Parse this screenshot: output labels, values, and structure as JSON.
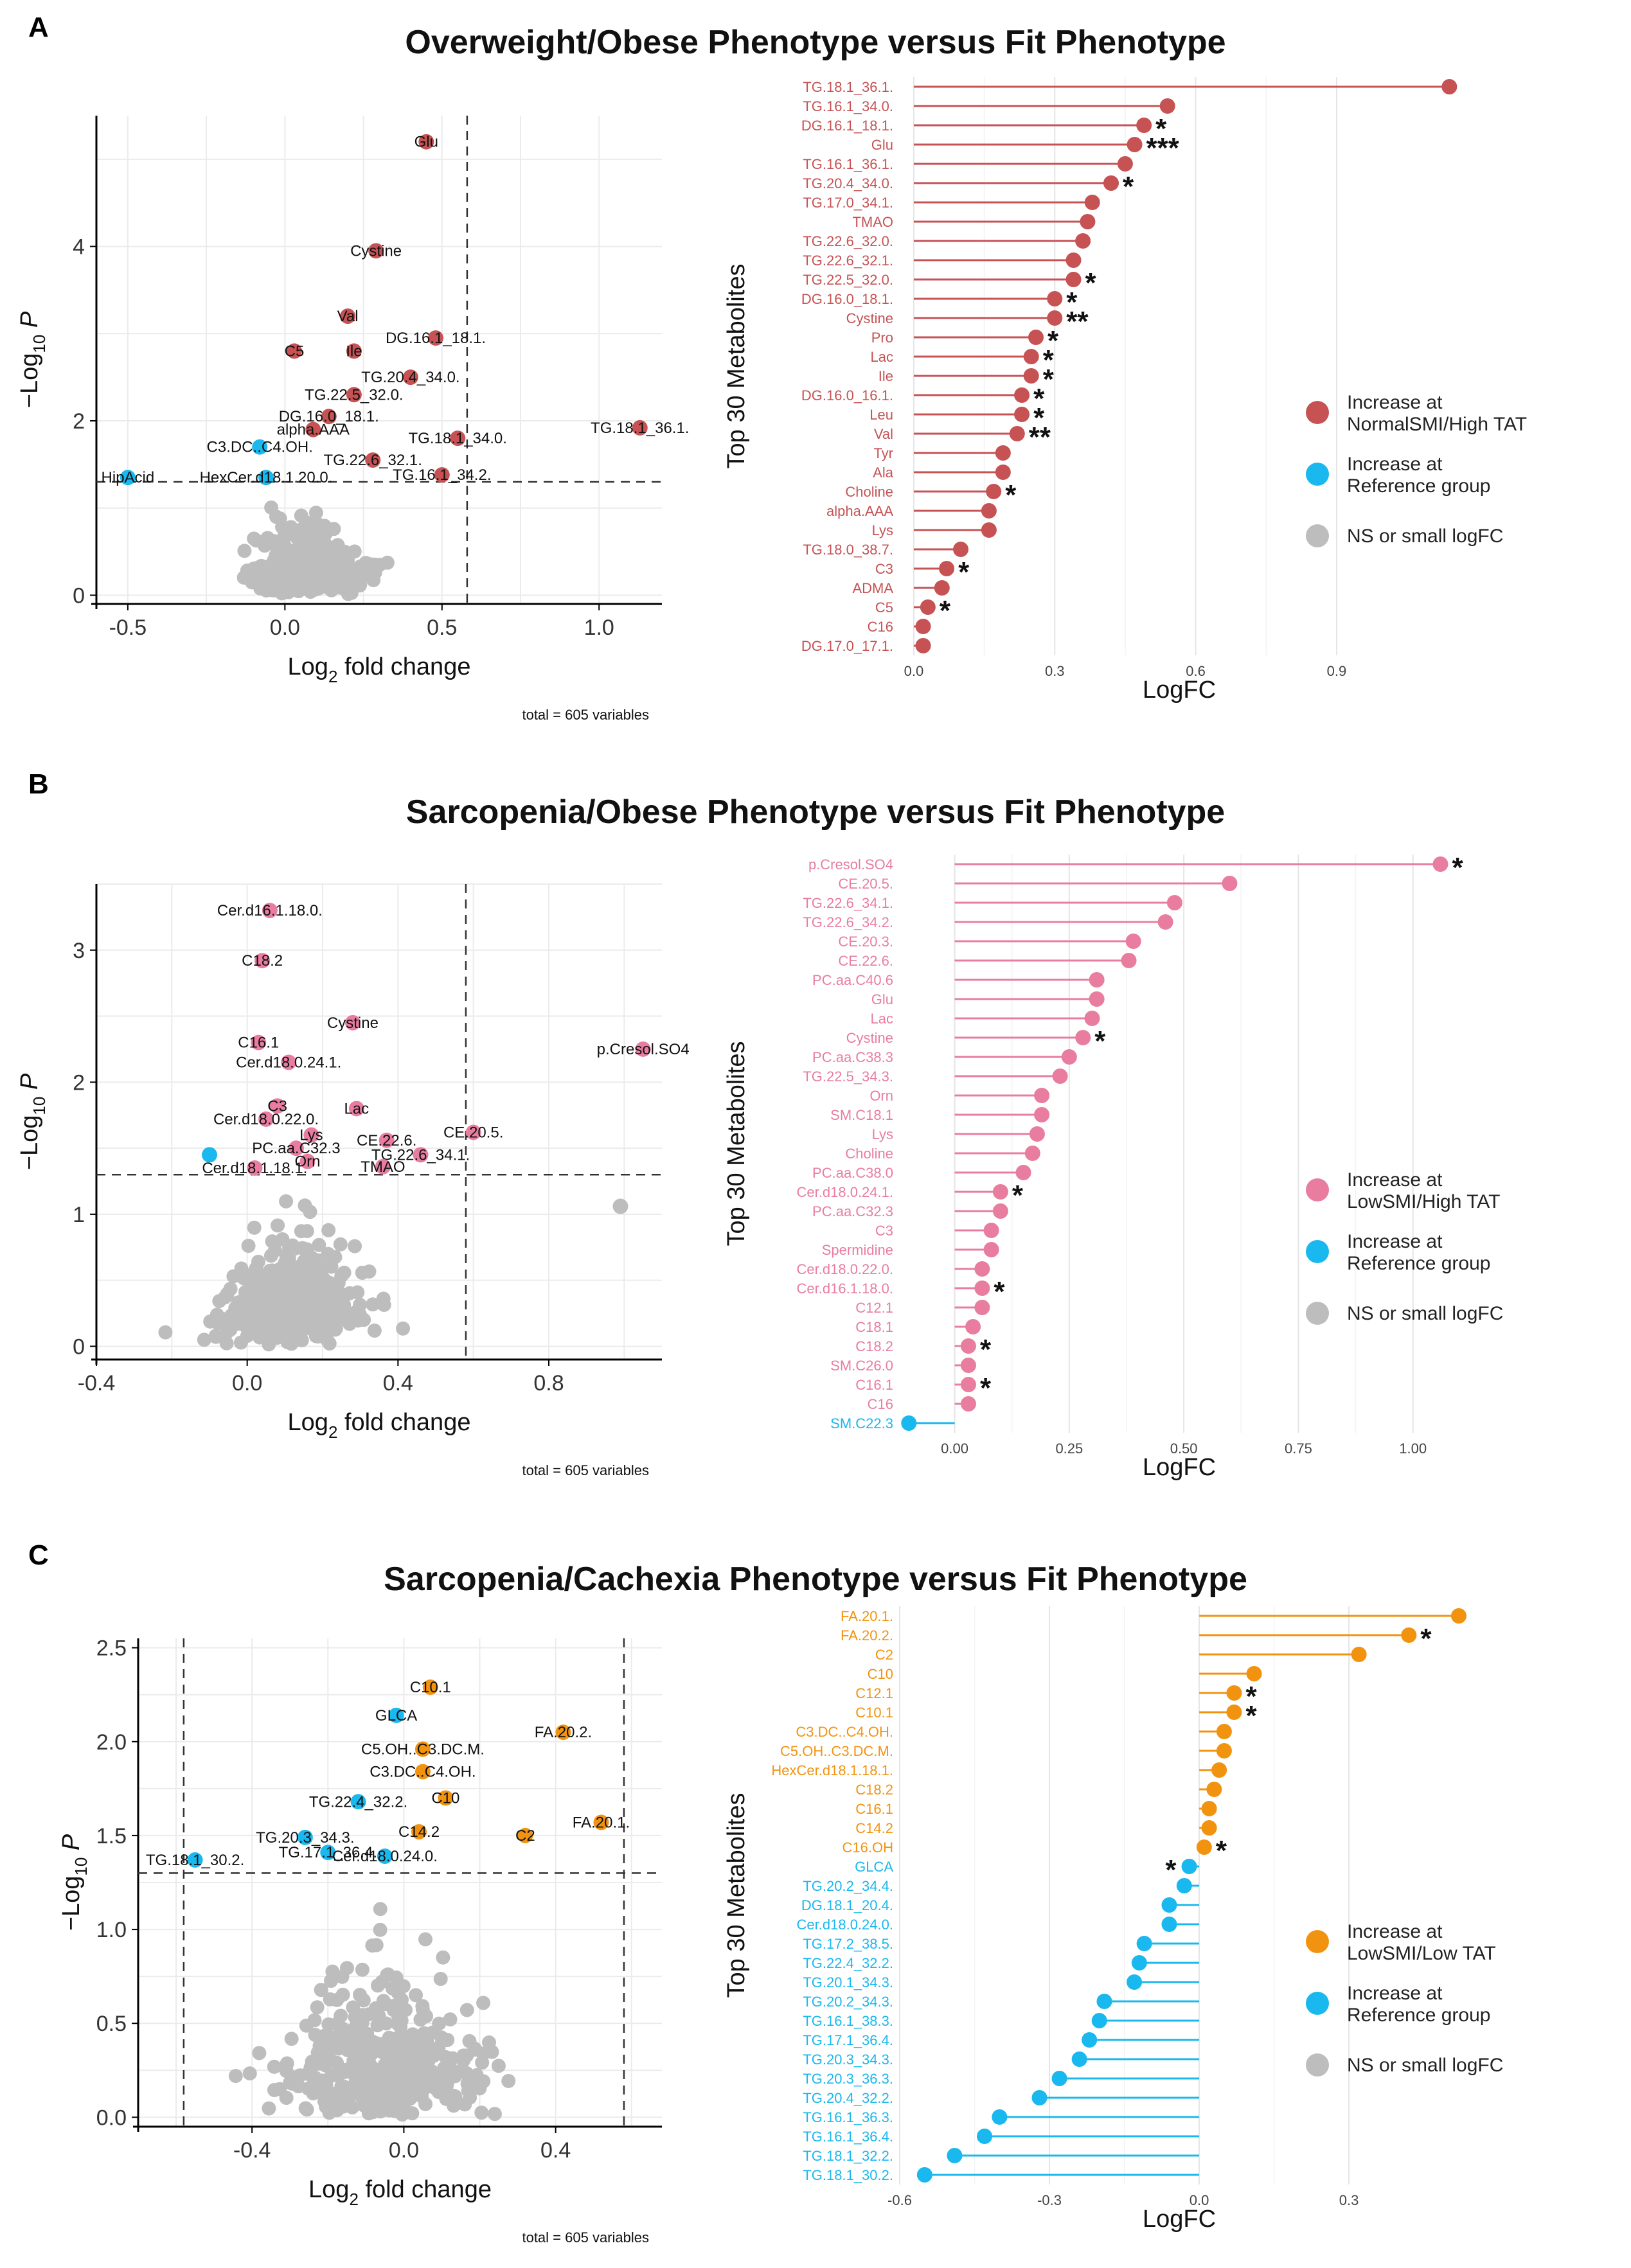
{
  "colors": {
    "panelA": "#c65254",
    "panelB": "#e87da0",
    "panelC": "#f2930f",
    "reference": "#19b8ee",
    "ns": "#bdbdbd"
  },
  "chart_data": [
    {
      "panel": "A",
      "title": "Overweight/Obese Phenotype versus Fit Phenotype",
      "volcano": {
        "type": "scatter",
        "xlabel_prefix": "Log",
        "xlabel_sub": "2",
        "xlabel_suffix": " fold change",
        "ylabel_prefix": "−Log",
        "ylabel_sub": "10",
        "ylabel_suffix": " P",
        "xlim": [
          -0.6,
          1.2
        ],
        "ylim": [
          -0.1,
          5.5
        ],
        "xticks": [
          -0.5,
          0.0,
          0.5,
          1.0
        ],
        "xtick_labels": [
          "-0.5",
          "0.0",
          "0.5",
          "1.0"
        ],
        "yticks": [
          0,
          2,
          4
        ],
        "ytick_labels": [
          "0",
          "2",
          "4"
        ],
        "vline": [
          0.58
        ],
        "hline": 1.3,
        "total_note": "total = 605 variables",
        "labeled_points": [
          {
            "label": "Glu",
            "x": 0.45,
            "y": 5.2,
            "group": "up"
          },
          {
            "label": "Cystine",
            "x": 0.29,
            "y": 3.95,
            "group": "up"
          },
          {
            "label": "Val",
            "x": 0.2,
            "y": 3.2,
            "group": "up"
          },
          {
            "label": "DG.16.1_18.1.",
            "x": 0.48,
            "y": 2.95,
            "group": "up"
          },
          {
            "label": "C5",
            "x": 0.03,
            "y": 2.8,
            "group": "up"
          },
          {
            "label": "Ile",
            "x": 0.22,
            "y": 2.8,
            "group": "up"
          },
          {
            "label": "TG.20.4_34.0.",
            "x": 0.4,
            "y": 2.5,
            "group": "up"
          },
          {
            "label": "TG.22.5_32.0.",
            "x": 0.22,
            "y": 2.3,
            "group": "up"
          },
          {
            "label": "DG.16.0_18.1.",
            "x": 0.14,
            "y": 2.05,
            "group": "up"
          },
          {
            "label": "alpha.AAA",
            "x": 0.09,
            "y": 1.9,
            "group": "up"
          },
          {
            "label": "TG.18.1_36.1.",
            "x": 1.13,
            "y": 1.92,
            "group": "up"
          },
          {
            "label": "C3.DC..C4.OH.",
            "x": -0.08,
            "y": 1.7,
            "group": "ref"
          },
          {
            "label": "TG.18.1_34.0.",
            "x": 0.55,
            "y": 1.8,
            "group": "up"
          },
          {
            "label": "TG.22.6_32.1.",
            "x": 0.28,
            "y": 1.55,
            "group": "up"
          },
          {
            "label": "HipAcid",
            "x": -0.5,
            "y": 1.35,
            "group": "ref"
          },
          {
            "label": "HexCer.d18.1.20.0.",
            "x": -0.06,
            "y": 1.35,
            "group": "ref"
          },
          {
            "label": "TG.16.1_34.2.",
            "x": 0.5,
            "y": 1.38,
            "group": "up"
          }
        ]
      },
      "lollipop": {
        "type": "bar",
        "orientation": "horizontal",
        "ylabel": "Top 30 Metabolites",
        "xlabel": "LogFC",
        "xlim": [
          -0.03,
          1.16
        ],
        "xticks": [
          0.0,
          0.3,
          0.6,
          0.9
        ],
        "xtick_labels": [
          "0.0",
          "0.3",
          "0.6",
          "0.9"
        ],
        "categories": [
          "TG.18.1_36.1.",
          "TG.16.1_34.0.",
          "DG.16.1_18.1.",
          "Glu",
          "TG.16.1_36.1.",
          "TG.20.4_34.0.",
          "TG.17.0_34.1.",
          "TMAO",
          "TG.22.6_32.0.",
          "TG.22.6_32.1.",
          "TG.22.5_32.0.",
          "DG.16.0_18.1.",
          "Cystine",
          "Pro",
          "Lac",
          "Ile",
          "DG.16.0_16.1.",
          "Leu",
          "Val",
          "Tyr",
          "Ala",
          "Choline",
          "alpha.AAA",
          "Lys",
          "TG.18.0_38.7.",
          "C3",
          "ADMA",
          "C5",
          "C16",
          "DG.17.0_17.1."
        ],
        "values": [
          1.14,
          0.54,
          0.49,
          0.47,
          0.45,
          0.42,
          0.38,
          0.37,
          0.36,
          0.34,
          0.34,
          0.3,
          0.3,
          0.26,
          0.25,
          0.25,
          0.23,
          0.23,
          0.22,
          0.19,
          0.19,
          0.17,
          0.16,
          0.16,
          0.1,
          0.07,
          0.06,
          0.03,
          0.02,
          0.02
        ],
        "groups": [
          "up",
          "up",
          "up",
          "up",
          "up",
          "up",
          "up",
          "up",
          "up",
          "up",
          "up",
          "up",
          "up",
          "up",
          "up",
          "up",
          "up",
          "up",
          "up",
          "up",
          "up",
          "up",
          "up",
          "up",
          "up",
          "up",
          "up",
          "up",
          "up",
          "up"
        ],
        "stars": [
          "",
          "",
          "*",
          "***",
          "",
          "*",
          "",
          "",
          "",
          "",
          "*",
          "*",
          "**",
          "*",
          "*",
          "*",
          "*",
          "*",
          "**",
          "",
          "",
          "*",
          "",
          "",
          "",
          "*",
          "",
          "*",
          "",
          ""
        ],
        "legend": [
          {
            "label1": "Increase at",
            "label2": "NormalSMI/High TAT",
            "group": "up"
          },
          {
            "label1": "Increase at",
            "label2": "Reference group",
            "group": "ref"
          },
          {
            "label1": "NS or small logFC",
            "label2": "",
            "group": "ns"
          }
        ]
      }
    },
    {
      "panel": "B",
      "title": "Sarcopenia/Obese Phenotype versus Fit Phenotype",
      "volcano": {
        "type": "scatter",
        "xlabel_prefix": "Log",
        "xlabel_sub": "2",
        "xlabel_suffix": " fold change",
        "ylabel_prefix": "−Log",
        "ylabel_sub": "10",
        "ylabel_suffix": " P",
        "xlim": [
          -0.4,
          1.1
        ],
        "ylim": [
          -0.1,
          3.5
        ],
        "xticks": [
          -0.4,
          0.0,
          0.4,
          0.8
        ],
        "xtick_labels": [
          "-0.4",
          "0.0",
          "0.4",
          "0.8"
        ],
        "yticks": [
          0,
          1,
          2,
          3
        ],
        "ytick_labels": [
          "0",
          "1",
          "2",
          "3"
        ],
        "vline": [
          0.58
        ],
        "hline": 1.3,
        "total_note": "total = 605 variables",
        "labeled_points": [
          {
            "label": "Cer.d16.1.18.0.",
            "x": 0.06,
            "y": 3.3,
            "group": "up"
          },
          {
            "label": "C18.2",
            "x": 0.04,
            "y": 2.92,
            "group": "up"
          },
          {
            "label": "Cystine",
            "x": 0.28,
            "y": 2.45,
            "group": "up"
          },
          {
            "label": "p.Cresol.SO4",
            "x": 1.05,
            "y": 2.25,
            "group": "up"
          },
          {
            "label": "C16.1",
            "x": 0.03,
            "y": 2.3,
            "group": "up"
          },
          {
            "label": "Cer.d18.0.24.1.",
            "x": 0.11,
            "y": 2.15,
            "group": "up"
          },
          {
            "label": "C3",
            "x": 0.08,
            "y": 1.82,
            "group": "up"
          },
          {
            "label": "Lac",
            "x": 0.29,
            "y": 1.8,
            "group": "up"
          },
          {
            "label": "Cer.d18.0.22.0.",
            "x": 0.05,
            "y": 1.72,
            "group": "up"
          },
          {
            "label": "Lys",
            "x": 0.17,
            "y": 1.6,
            "group": "up"
          },
          {
            "label": "CE.20.5.",
            "x": 0.6,
            "y": 1.62,
            "group": "up"
          },
          {
            "label": "CE.22.6.",
            "x": 0.37,
            "y": 1.56,
            "group": "up"
          },
          {
            "label": "PC.aa.C32.3",
            "x": 0.13,
            "y": 1.5,
            "group": "up"
          },
          {
            "label": "TG.22.6_34.1.",
            "x": 0.46,
            "y": 1.45,
            "group": "up"
          },
          {
            "label": "Orn",
            "x": 0.16,
            "y": 1.4,
            "group": "up"
          },
          {
            "label": "TMAO",
            "x": 0.36,
            "y": 1.36,
            "group": "up"
          },
          {
            "label": "Cer.d18.1.18.1.",
            "x": 0.02,
            "y": 1.35,
            "group": "up"
          },
          {
            "label": "",
            "x": -0.1,
            "y": 1.45,
            "group": "ref"
          },
          {
            "label": "",
            "x": 0.99,
            "y": 1.06,
            "group": "ns"
          }
        ]
      },
      "lollipop": {
        "type": "bar",
        "orientation": "horizontal",
        "ylabel": "Top 30 Metabolites",
        "xlabel": "LogFC",
        "xlim": [
          -0.12,
          1.1
        ],
        "xticks": [
          0.0,
          0.25,
          0.5,
          0.75,
          1.0
        ],
        "xtick_labels": [
          "0.00",
          "0.25",
          "0.50",
          "0.75",
          "1.00"
        ],
        "categories": [
          "p.Cresol.SO4",
          "CE.20.5.",
          "TG.22.6_34.1.",
          "TG.22.6_34.2.",
          "CE.20.3.",
          "CE.22.6.",
          "PC.aa.C40.6",
          "Glu",
          "Lac",
          "Cystine",
          "PC.aa.C38.3",
          "TG.22.5_34.3.",
          "Orn",
          "SM.C18.1",
          "Lys",
          "Choline",
          "PC.aa.C38.0",
          "Cer.d18.0.24.1.",
          "PC.aa.C32.3",
          "C3",
          "Spermidine",
          "Cer.d18.0.22.0.",
          "Cer.d16.1.18.0.",
          "C12.1",
          "C18.1",
          "C18.2",
          "SM.C26.0",
          "C16.1",
          "C16",
          "SM.C22.3"
        ],
        "values": [
          1.06,
          0.6,
          0.48,
          0.46,
          0.39,
          0.38,
          0.31,
          0.31,
          0.3,
          0.28,
          0.25,
          0.23,
          0.19,
          0.19,
          0.18,
          0.17,
          0.15,
          0.1,
          0.1,
          0.08,
          0.08,
          0.06,
          0.06,
          0.06,
          0.04,
          0.03,
          0.03,
          0.03,
          0.03,
          -0.1
        ],
        "groups": [
          "up",
          "up",
          "up",
          "up",
          "up",
          "up",
          "up",
          "up",
          "up",
          "up",
          "up",
          "up",
          "up",
          "up",
          "up",
          "up",
          "up",
          "up",
          "up",
          "up",
          "up",
          "up",
          "up",
          "up",
          "up",
          "up",
          "up",
          "up",
          "up",
          "ref"
        ],
        "stars": [
          "*",
          "",
          "",
          "",
          "",
          "",
          "",
          "",
          "",
          "*",
          "",
          "",
          "",
          "",
          "",
          "",
          "",
          "*",
          "",
          "",
          "",
          "",
          "*",
          "",
          "",
          "*",
          "",
          "*",
          "",
          ""
        ],
        "legend": [
          {
            "label1": "Increase at",
            "label2": "LowSMI/High TAT",
            "group": "up"
          },
          {
            "label1": "Increase at",
            "label2": "Reference group",
            "group": "ref"
          },
          {
            "label1": "NS or small logFC",
            "label2": "",
            "group": "ns"
          }
        ]
      }
    },
    {
      "panel": "C",
      "title": "Sarcopenia/Cachexia Phenotype versus Fit Phenotype",
      "volcano": {
        "type": "scatter",
        "xlabel_prefix": "Log",
        "xlabel_sub": "2",
        "xlabel_suffix": " fold change",
        "ylabel_prefix": "−Log",
        "ylabel_sub": "10",
        "ylabel_suffix": " P",
        "xlim": [
          -0.7,
          0.68
        ],
        "ylim": [
          -0.05,
          2.55
        ],
        "xticks": [
          -0.4,
          0.0,
          0.4
        ],
        "xtick_labels": [
          "-0.4",
          "0.0",
          "0.4"
        ],
        "yticks": [
          0.0,
          0.5,
          1.0,
          1.5,
          2.0,
          2.5
        ],
        "ytick_labels": [
          "0.0",
          "0.5",
          "1.0",
          "1.5",
          "2.0",
          "2.5"
        ],
        "vline": [
          -0.58,
          0.58
        ],
        "hline": 1.3,
        "total_note": "total = 605 variables",
        "labeled_points": [
          {
            "label": "C10.1",
            "x": 0.07,
            "y": 2.29,
            "group": "up"
          },
          {
            "label": "GLCA",
            "x": -0.02,
            "y": 2.14,
            "group": "ref"
          },
          {
            "label": "FA.20.2.",
            "x": 0.42,
            "y": 2.05,
            "group": "up"
          },
          {
            "label": "C5.OH..C3.DC.M.",
            "x": 0.05,
            "y": 1.96,
            "group": "up"
          },
          {
            "label": "C3.DC..C4.OH.",
            "x": 0.05,
            "y": 1.84,
            "group": "up"
          },
          {
            "label": "C10",
            "x": 0.11,
            "y": 1.7,
            "group": "up"
          },
          {
            "label": "TG.22.4_32.2.",
            "x": -0.12,
            "y": 1.68,
            "group": "ref"
          },
          {
            "label": "FA.20.1.",
            "x": 0.52,
            "y": 1.57,
            "group": "up"
          },
          {
            "label": "C14.2",
            "x": 0.04,
            "y": 1.52,
            "group": "up"
          },
          {
            "label": "C2",
            "x": 0.32,
            "y": 1.5,
            "group": "up"
          },
          {
            "label": "TG.20.3_34.3.",
            "x": -0.26,
            "y": 1.49,
            "group": "ref"
          },
          {
            "label": "TG.17.1_36.4.",
            "x": -0.2,
            "y": 1.41,
            "group": "ref"
          },
          {
            "label": "TG.18.1_30.2.",
            "x": -0.55,
            "y": 1.37,
            "group": "ref"
          },
          {
            "label": "Cer.d18.0.24.0.",
            "x": -0.05,
            "y": 1.39,
            "group": "ref"
          }
        ]
      },
      "lollipop": {
        "type": "bar",
        "orientation": "horizontal",
        "ylabel": "Top 30 Metabolites",
        "xlabel": "LogFC",
        "xlim": [
          -0.6,
          0.52
        ],
        "xticks": [
          -0.6,
          -0.3,
          0.0,
          0.3
        ],
        "xtick_labels": [
          "-0.6",
          "-0.3",
          "0.0",
          "0.3"
        ],
        "categories": [
          "FA.20.1.",
          "FA.20.2.",
          "C2",
          "C10",
          "C12.1",
          "C10.1",
          "C3.DC..C4.OH.",
          "C5.OH..C3.DC.M.",
          "HexCer.d18.1.18.1.",
          "C18.2",
          "C16.1",
          "C14.2",
          "C16.OH",
          "GLCA",
          "TG.20.2_34.4.",
          "DG.18.1_20.4.",
          "Cer.d18.0.24.0.",
          "TG.17.2_38.5.",
          "TG.22.4_32.2.",
          "TG.20.1_34.3.",
          "TG.20.2_34.3.",
          "TG.16.1_38.3.",
          "TG.17.1_36.4.",
          "TG.20.3_34.3.",
          "TG.20.3_36.3.",
          "TG.20.4_32.2.",
          "TG.16.1_36.3.",
          "TG.16.1_36.4.",
          "TG.18.1_32.2.",
          "TG.18.1_30.2."
        ],
        "values": [
          0.52,
          0.42,
          0.32,
          0.11,
          0.07,
          0.07,
          0.05,
          0.05,
          0.04,
          0.03,
          0.02,
          0.02,
          0.01,
          -0.02,
          -0.03,
          -0.06,
          -0.06,
          -0.11,
          -0.12,
          -0.13,
          -0.19,
          -0.2,
          -0.22,
          -0.24,
          -0.28,
          -0.32,
          -0.4,
          -0.43,
          -0.49,
          -0.55
        ],
        "groups": [
          "up",
          "up",
          "up",
          "up",
          "up",
          "up",
          "up",
          "up",
          "up",
          "up",
          "up",
          "up",
          "up",
          "ref",
          "ref",
          "ref",
          "ref",
          "ref",
          "ref",
          "ref",
          "ref",
          "ref",
          "ref",
          "ref",
          "ref",
          "ref",
          "ref",
          "ref",
          "ref",
          "ref"
        ],
        "stars": [
          "",
          "*",
          "",
          "",
          "*",
          "*",
          "",
          "",
          "",
          "",
          "",
          "",
          "*",
          "*",
          "",
          "",
          "",
          "",
          "",
          "",
          "",
          "",
          "",
          "",
          "",
          "",
          "",
          "",
          "",
          ""
        ],
        "legend": [
          {
            "label1": "Increase at",
            "label2": "LowSMI/Low TAT",
            "group": "up"
          },
          {
            "label1": "Increase at",
            "label2": "Reference group",
            "group": "ref"
          },
          {
            "label1": "NS or small logFC",
            "label2": "",
            "group": "ns"
          }
        ]
      }
    }
  ]
}
